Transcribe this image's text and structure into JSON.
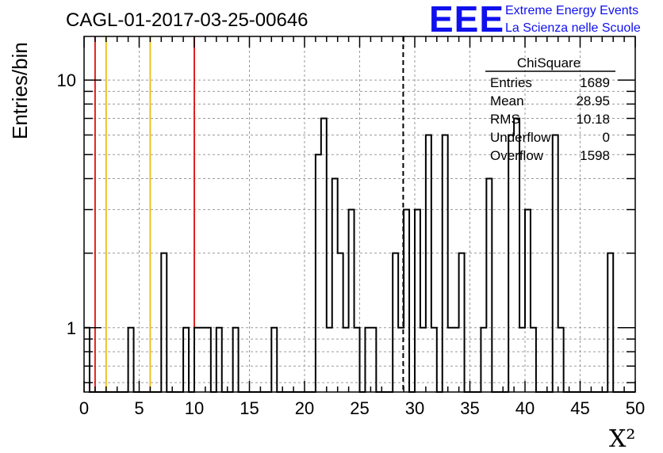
{
  "logo": {
    "mark": "EEE",
    "line1": "Extreme Energy Events",
    "line2": "La Scienza nelle Scuole",
    "color": "#1010ee"
  },
  "stats_box": {
    "title": "ChiSquare",
    "rows": [
      {
        "label": "Entries",
        "value": "1689"
      },
      {
        "label": "Mean",
        "value": "28.95"
      },
      {
        "label": "RMS",
        "value": "10.18"
      },
      {
        "label": "Underflow",
        "value": "0"
      },
      {
        "label": "Overflow",
        "value": "1598"
      }
    ]
  },
  "chart_data": {
    "type": "bar",
    "title": "CAGL-01-2017-03-25-00646",
    "xlabel": "X²",
    "ylabel": "Entries/bin",
    "xlim": [
      0,
      50
    ],
    "ylim": [
      0.55,
      15
    ],
    "yscale": "log",
    "bin_width": 0.5,
    "grid": true,
    "x_ticks": [
      0,
      5,
      10,
      15,
      20,
      25,
      30,
      35,
      40,
      45,
      50
    ],
    "x_tick_labels": [
      "0",
      "5",
      "10",
      "15",
      "20",
      "25",
      "30",
      "35",
      "40",
      "45",
      "50"
    ],
    "y_ticks": [
      1,
      10
    ],
    "y_tick_labels": [
      "1",
      "10"
    ],
    "series": [
      {
        "values": [
          1,
          0,
          0,
          0,
          0,
          0,
          0,
          0,
          1,
          0,
          0,
          0,
          0,
          0,
          2,
          0,
          0,
          0,
          1,
          0,
          1,
          1,
          1,
          0,
          1,
          0,
          0,
          1,
          0,
          0,
          0,
          0,
          0,
          0,
          1,
          0,
          0,
          0,
          0,
          0,
          0,
          0,
          5,
          7,
          1,
          4,
          2,
          1,
          3,
          1,
          0,
          1,
          1,
          0,
          0,
          0,
          2,
          1,
          3,
          0,
          3,
          1,
          6,
          1,
          0,
          6,
          1,
          1,
          2,
          0,
          0,
          0,
          1,
          4,
          0,
          0,
          0,
          6,
          7,
          1,
          3,
          1,
          0,
          0,
          0,
          6,
          1,
          0,
          0,
          0,
          0,
          0,
          0,
          0,
          0,
          2,
          0,
          0,
          0,
          0
        ]
      }
    ],
    "reference_lines": [
      {
        "x": 1,
        "color": "#dd2222",
        "style": "solid"
      },
      {
        "x": 2,
        "color": "#f0c020",
        "style": "solid"
      },
      {
        "x": 6,
        "color": "#f0c020",
        "style": "solid"
      },
      {
        "x": 10,
        "color": "#dd2222",
        "style": "solid"
      },
      {
        "x": 28.95,
        "color": "#000000",
        "style": "dashed"
      }
    ]
  }
}
